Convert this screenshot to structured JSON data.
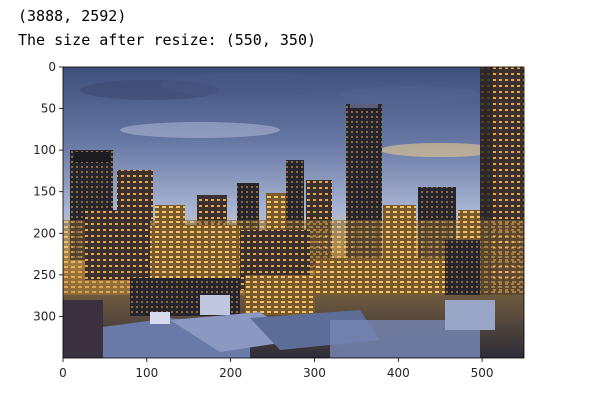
{
  "console": {
    "line1": "(3888, 2592)",
    "line2": "The size after resize: (550, 350)"
  },
  "chart_data": {
    "type": "image",
    "xlim": [
      0,
      550
    ],
    "ylim": [
      350,
      0
    ],
    "xticks": [
      0,
      100,
      200,
      300,
      400,
      500
    ],
    "yticks": [
      0,
      50,
      100,
      150,
      200,
      250,
      300
    ],
    "grid": false,
    "image_subject": "city skyline at dusk"
  },
  "colors": {
    "sky_top": "#4a5a86",
    "sky_mid": "#a7b4d2",
    "horizon": "#f0c060",
    "buildings_dark": "#2c2a30",
    "buildings_warm": "#d89a3c",
    "roof_blue": "#6a7aa8"
  }
}
